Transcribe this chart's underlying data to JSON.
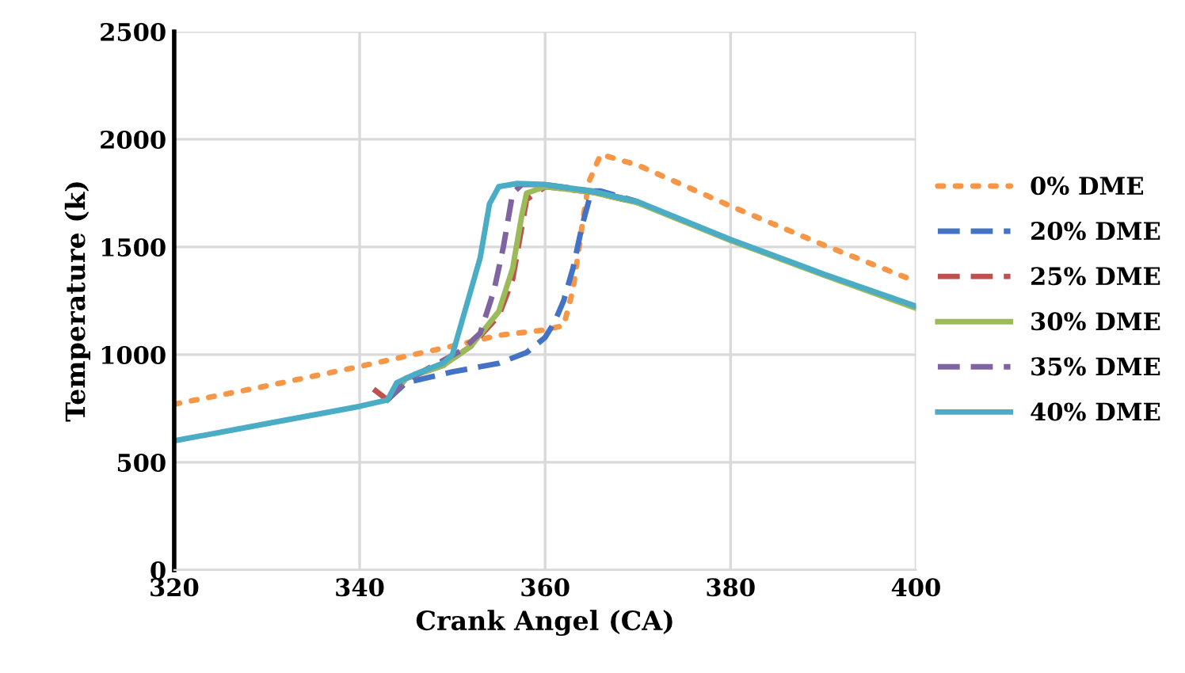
{
  "chart_data": {
    "type": "line",
    "xlabel": "Crank Angel (CA)",
    "ylabel": "Temperature (k)",
    "xlim": [
      320,
      400
    ],
    "xticks": [
      320,
      340,
      360,
      380,
      400
    ],
    "ylim": [
      0,
      2500
    ],
    "yticks": [
      0,
      500,
      1000,
      1500,
      2000,
      2500
    ],
    "grid": true,
    "legend": "right",
    "marker": "none",
    "series": [
      {
        "name": "0% DME",
        "color": "#f79646",
        "line_style": "dotted",
        "x": [
          320,
          330,
          340,
          350,
          355,
          360,
          362,
          363,
          364,
          364.7,
          366,
          370,
          380,
          390,
          400
        ],
        "values": [
          770,
          855,
          945,
          1040,
          1090,
          1115,
          1135,
          1300,
          1600,
          1800,
          1930,
          1880,
          1690,
          1510,
          1340
        ]
      },
      {
        "name": "20% DME",
        "color": "#4472c4",
        "line_style": "dashed",
        "x": [
          343,
          345,
          350,
          355,
          358,
          360,
          361,
          362,
          363,
          364,
          365,
          366,
          370
        ],
        "values": [
          790,
          870,
          920,
          960,
          1010,
          1080,
          1150,
          1250,
          1400,
          1600,
          1760,
          1760,
          1710
        ]
      },
      {
        "name": "25% DME",
        "color": "#c0504d",
        "line_style": "dashed",
        "x": [
          341.5,
          343,
          345,
          349,
          352,
          355,
          356.5,
          358,
          360,
          365,
          370
        ],
        "values": [
          840,
          790,
          890,
          950,
          1040,
          1180,
          1350,
          1720,
          1780,
          1755,
          1705
        ]
      },
      {
        "name": "30% DME",
        "color": "#9bbb59",
        "line_style": "solid",
        "x": [
          343,
          345,
          349,
          352,
          355,
          356.5,
          357.5,
          358,
          360,
          365,
          370,
          380,
          390,
          400
        ],
        "values": [
          790,
          890,
          950,
          1040,
          1200,
          1400,
          1650,
          1750,
          1780,
          1755,
          1705,
          1530,
          1370,
          1215
        ]
      },
      {
        "name": "35% DME",
        "color": "#8064a2",
        "line_style": "dashed",
        "x": [
          343,
          345,
          348,
          351,
          353,
          354.5,
          355.5,
          356.5,
          357.5,
          360,
          365,
          370
        ],
        "values": [
          790,
          880,
          950,
          1020,
          1100,
          1300,
          1500,
          1750,
          1790,
          1790,
          1760,
          1710
        ]
      },
      {
        "name": "40% DME",
        "color": "#4bacc6",
        "line_style": "solid",
        "x": [
          320,
          330,
          340,
          343,
          344,
          346,
          349,
          350,
          351,
          352,
          353,
          354,
          355,
          357,
          360,
          365,
          370,
          380,
          390,
          400
        ],
        "values": [
          600,
          680,
          760,
          790,
          870,
          910,
          960,
          1000,
          1150,
          1300,
          1450,
          1700,
          1780,
          1795,
          1790,
          1760,
          1710,
          1535,
          1375,
          1225
        ]
      }
    ]
  }
}
